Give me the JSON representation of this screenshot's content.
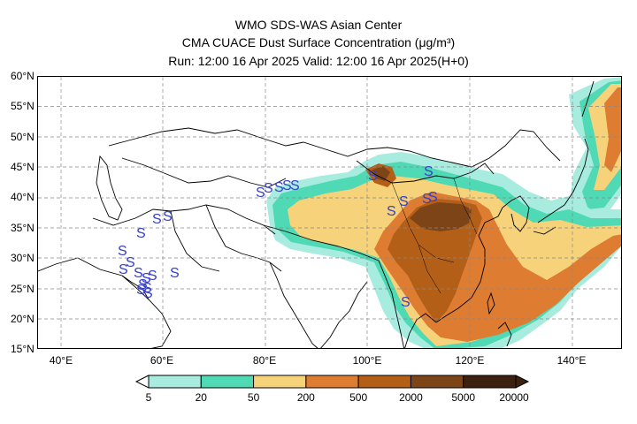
{
  "title": {
    "line1": "WMO SDS-WAS Asian Center",
    "line2": "CMA CUACE Dust Surface Concentration (μg/m³)",
    "line3": "Run: 12:00 16 Apr 2025    Valid: 12:00 16 Apr 2025(H+0)"
  },
  "axes": {
    "lat_labels": [
      "60°N",
      "55°N",
      "50°N",
      "45°N",
      "40°N",
      "35°N",
      "30°N",
      "25°N",
      "20°N",
      "15°N"
    ],
    "lon_labels": [
      "40°E",
      "60°E",
      "80°E",
      "100°E",
      "120°E",
      "140°E"
    ]
  },
  "colorbar": {
    "ticks": [
      "5",
      "20",
      "50",
      "200",
      "500",
      "2000",
      "5000",
      "20000"
    ],
    "colors": [
      "#a8ece0",
      "#4fd9b4",
      "#f6d37a",
      "#de7c32",
      "#b35f18",
      "#7d4418",
      "#3d2110"
    ]
  },
  "legend_marker": "S",
  "marker_color": "#3540c8"
}
